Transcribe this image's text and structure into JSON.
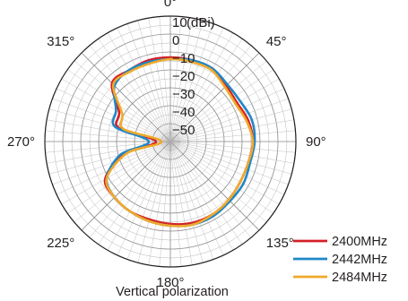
{
  "chart_data": {
    "type": "polar-line",
    "caption": "Vertical polarization",
    "radial_unit": "(dBi)",
    "radial_range": [
      -60,
      10
    ],
    "radial_ticks": [
      10,
      0,
      -10,
      -20,
      -30,
      -40,
      -50
    ],
    "radial_tick_labels": [
      "10",
      "0",
      "−10",
      "−20",
      "−30",
      "−40",
      "−50"
    ],
    "angle_ticks": [
      0,
      45,
      90,
      135,
      180,
      225,
      270,
      315
    ],
    "angle_tick_labels": [
      "0°",
      "45°",
      "90°",
      "135°",
      "180°",
      "225°",
      "270°",
      "315°"
    ],
    "grid": true,
    "legend_position": "bottom-right",
    "angles": [
      0,
      15,
      30,
      45,
      60,
      75,
      90,
      105,
      120,
      135,
      150,
      165,
      180,
      195,
      210,
      225,
      240,
      255,
      270,
      285,
      300,
      315,
      330,
      345,
      360
    ],
    "series": [
      {
        "name": "2400MHz",
        "color": "#d42027",
        "values": [
          -13,
          -13,
          -13,
          -16,
          -17,
          -15,
          -14,
          -15,
          -15,
          -14,
          -13,
          -13,
          -14,
          -15,
          -15,
          -16,
          -18,
          -33,
          -52,
          -30,
          -27,
          -14,
          -14,
          -13,
          -13
        ]
      },
      {
        "name": "2442MHz",
        "color": "#1f87c7",
        "values": [
          -14,
          -13,
          -13,
          -15,
          -15,
          -13,
          -13,
          -14,
          -13,
          -13,
          -12,
          -12,
          -13,
          -14,
          -15,
          -16,
          -19,
          -31,
          -48,
          -28,
          -25,
          -16,
          -14,
          -14,
          -14
        ]
      },
      {
        "name": "2484MHz",
        "color": "#f0a92b",
        "values": [
          -14,
          -14,
          -14,
          -17,
          -18,
          -16,
          -14,
          -15,
          -15,
          -14,
          -13,
          -12,
          -13,
          -14,
          -15,
          -16,
          -19,
          -35,
          -55,
          -33,
          -29,
          -15,
          -15,
          -15,
          -14
        ]
      }
    ]
  }
}
